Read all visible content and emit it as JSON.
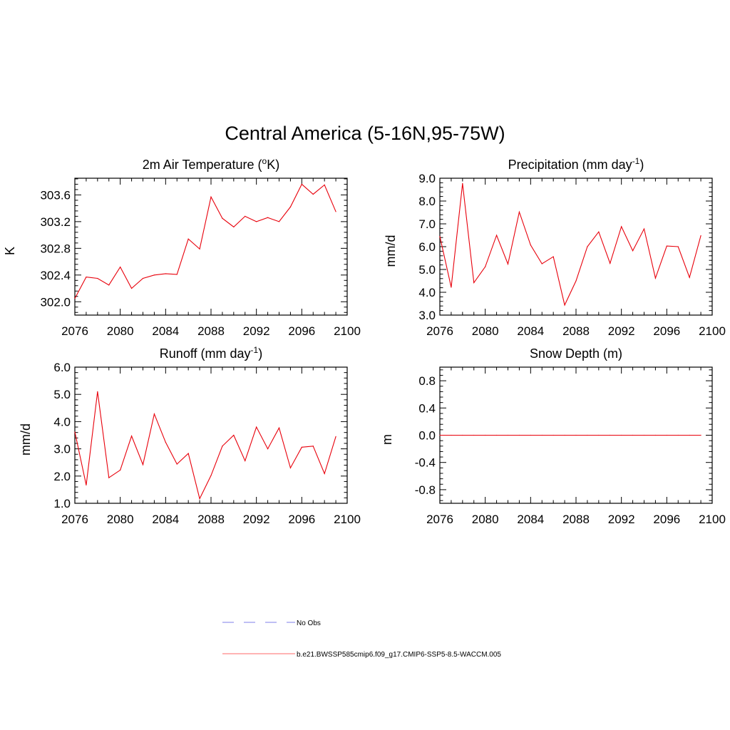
{
  "page": {
    "title": "Central America (5-16N,95-75W)"
  },
  "legend": {
    "items": [
      {
        "label": "No Obs",
        "color": "#9999ee",
        "style": "dashed"
      },
      {
        "label": "b.e21.BWSSP585cmip6.f09_g17.CMIP6-SSP5-8.5-WACCM.005",
        "color": "#ff8888",
        "style": "solid"
      }
    ]
  },
  "chart_data": [
    {
      "type": "line",
      "title": "2m Air Temperature (",
      "title_sup": "o",
      "title_tail": "K)",
      "xlabel": "",
      "ylabel": "K",
      "xlim": [
        2076,
        2100
      ],
      "ylim": [
        301.8,
        303.85
      ],
      "xticks": [
        2076,
        2080,
        2084,
        2088,
        2092,
        2096,
        2100
      ],
      "yticks": [
        302.0,
        302.4,
        302.8,
        303.2,
        303.6
      ],
      "ytick_labels": [
        "302.0",
        "302.4",
        "302.8",
        "303.2",
        "303.6"
      ],
      "series": [
        {
          "name": "b.e21.BWSSP585cmip6.f09_g17.CMIP6-SSP5-8.5-WACCM.005",
          "color": "#e8000b",
          "x": [
            2076,
            2077,
            2078,
            2079,
            2080,
            2081,
            2082,
            2083,
            2084,
            2085,
            2086,
            2087,
            2088,
            2089,
            2090,
            2091,
            2092,
            2093,
            2094,
            2095,
            2096,
            2097,
            2098,
            2099
          ],
          "values": [
            302.05,
            302.37,
            302.35,
            302.25,
            302.52,
            302.2,
            302.35,
            302.4,
            302.42,
            302.41,
            302.94,
            302.79,
            303.57,
            303.25,
            303.12,
            303.28,
            303.2,
            303.26,
            303.2,
            303.42,
            303.76,
            303.61,
            303.75,
            303.35
          ]
        }
      ]
    },
    {
      "type": "line",
      "title": "Precipitation (mm day",
      "title_sup": "-1",
      "title_tail": ")",
      "xlabel": "",
      "ylabel": "mm/d",
      "xlim": [
        2076,
        2100
      ],
      "ylim": [
        3.0,
        9.0
      ],
      "xticks": [
        2076,
        2080,
        2084,
        2088,
        2092,
        2096,
        2100
      ],
      "yticks": [
        3.0,
        4.0,
        5.0,
        6.0,
        7.0,
        8.0,
        9.0
      ],
      "ytick_labels": [
        "3.0",
        "4.0",
        "5.0",
        "6.0",
        "7.0",
        "8.0",
        "9.0"
      ],
      "series": [
        {
          "name": "b.e21.BWSSP585cmip6.f09_g17.CMIP6-SSP5-8.5-WACCM.005",
          "color": "#e8000b",
          "x": [
            2076,
            2077,
            2078,
            2079,
            2080,
            2081,
            2082,
            2083,
            2084,
            2085,
            2086,
            2087,
            2088,
            2089,
            2090,
            2091,
            2092,
            2093,
            2094,
            2095,
            2096,
            2097,
            2098,
            2099
          ],
          "values": [
            6.45,
            4.22,
            8.77,
            4.42,
            5.12,
            6.5,
            5.24,
            7.52,
            6.07,
            5.25,
            5.56,
            3.44,
            4.5,
            6.0,
            6.65,
            5.27,
            6.88,
            5.82,
            6.78,
            4.62,
            6.03,
            6.0,
            4.65,
            6.48
          ]
        }
      ]
    },
    {
      "type": "line",
      "title": "Runoff (mm day",
      "title_sup": "-1",
      "title_tail": ")",
      "xlabel": "",
      "ylabel": "mm/d",
      "xlim": [
        2076,
        2100
      ],
      "ylim": [
        1.0,
        6.0
      ],
      "xticks": [
        2076,
        2080,
        2084,
        2088,
        2092,
        2096,
        2100
      ],
      "yticks": [
        1.0,
        2.0,
        3.0,
        4.0,
        5.0,
        6.0
      ],
      "ytick_labels": [
        "1.0",
        "2.0",
        "3.0",
        "4.0",
        "5.0",
        "6.0"
      ],
      "series": [
        {
          "name": "b.e21.BWSSP585cmip6.f09_g17.CMIP6-SSP5-8.5-WACCM.005",
          "color": "#e8000b",
          "x": [
            2076,
            2077,
            2078,
            2079,
            2080,
            2081,
            2082,
            2083,
            2084,
            2085,
            2086,
            2087,
            2088,
            2089,
            2090,
            2091,
            2092,
            2093,
            2094,
            2095,
            2096,
            2097,
            2098,
            2099
          ],
          "values": [
            3.62,
            1.67,
            5.1,
            1.94,
            2.22,
            3.47,
            2.42,
            4.28,
            3.24,
            2.44,
            2.83,
            1.17,
            2.02,
            3.1,
            3.5,
            2.56,
            3.8,
            3.0,
            3.77,
            2.3,
            3.06,
            3.1,
            2.09,
            3.45
          ]
        }
      ]
    },
    {
      "type": "line",
      "title": "Snow Depth (m)",
      "title_sup": "",
      "title_tail": "",
      "xlabel": "",
      "ylabel": "m",
      "xlim": [
        2076,
        2100
      ],
      "ylim": [
        -1.0,
        1.0
      ],
      "xticks": [
        2076,
        2080,
        2084,
        2088,
        2092,
        2096,
        2100
      ],
      "yticks": [
        -0.8,
        -0.4,
        0.0,
        0.4,
        0.8
      ],
      "ytick_labels": [
        "-0.8",
        "-0.4",
        "0.0",
        "0.4",
        "0.8"
      ],
      "series": [
        {
          "name": "b.e21.BWSSP585cmip6.f09_g17.CMIP6-SSP5-8.5-WACCM.005",
          "color": "#e8000b",
          "x": [
            2076,
            2077,
            2078,
            2079,
            2080,
            2081,
            2082,
            2083,
            2084,
            2085,
            2086,
            2087,
            2088,
            2089,
            2090,
            2091,
            2092,
            2093,
            2094,
            2095,
            2096,
            2097,
            2098,
            2099
          ],
          "values": [
            0,
            0,
            0,
            0,
            0,
            0,
            0,
            0,
            0,
            0,
            0,
            0,
            0,
            0,
            0,
            0,
            0,
            0,
            0,
            0,
            0,
            0,
            0,
            0
          ]
        }
      ]
    }
  ]
}
